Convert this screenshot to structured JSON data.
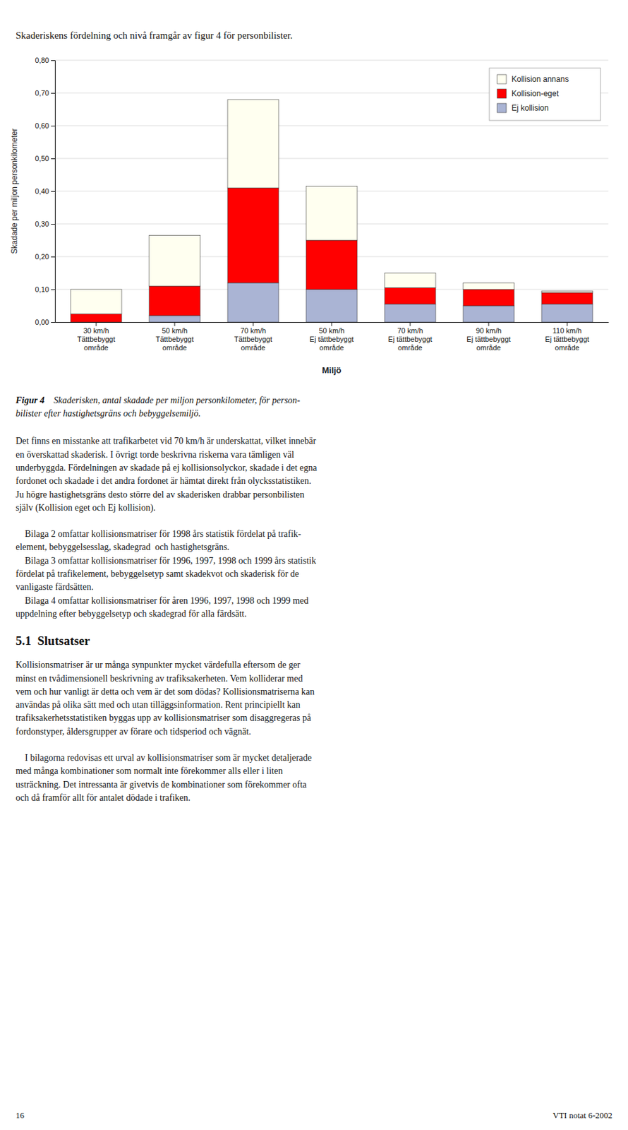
{
  "chart_data": {
    "type": "bar",
    "stacked": true,
    "categories": [
      "30 km/h\nTättbebyggt\nområde",
      "50 km/h\nTättbebyggt\nområde",
      "70 km/h\nTättbebyggt\nområde",
      "50 km/h\nEj tättbebyggt\nområde",
      "70 km/h\nEj tättbebyggt\nområde",
      "90 km/h\nEj tättbebyggt\nområde",
      "110 km/h\nEj tättbebyggt\nområde"
    ],
    "series": [
      {
        "name": "Ej kollision",
        "color": "#aab4d4",
        "values": [
          0.0,
          0.02,
          0.12,
          0.1,
          0.055,
          0.05,
          0.055
        ]
      },
      {
        "name": "Kollision-eget",
        "color": "#ff0000",
        "values": [
          0.025,
          0.09,
          0.29,
          0.15,
          0.05,
          0.05,
          0.035
        ]
      },
      {
        "name": "Kollision annans",
        "color": "#fffff0",
        "values": [
          0.075,
          0.155,
          0.27,
          0.165,
          0.045,
          0.02,
          0.005
        ]
      }
    ],
    "ylabel": "Skadade per miljon personkilometer",
    "ylim": [
      0.0,
      0.8
    ],
    "yticks": [
      {
        "value": 0.0,
        "label": "0,00"
      },
      {
        "value": 0.1,
        "label": "0,10"
      },
      {
        "value": 0.2,
        "label": "0,20"
      },
      {
        "value": 0.3,
        "label": "0,30"
      },
      {
        "value": 0.4,
        "label": "0,40"
      },
      {
        "value": 0.5,
        "label": "0,50"
      },
      {
        "value": 0.6,
        "label": "0,60"
      },
      {
        "value": 0.7,
        "label": "0,70"
      },
      {
        "value": 0.8,
        "label": "0,80"
      }
    ],
    "grid": true,
    "legend": "upper right",
    "annotations": [
      {
        "text": "Miljö",
        "category": "50 km/h\nEj tättbebyggt\nområde"
      }
    ]
  },
  "intro": "Skaderiskens fördelning och nivå framgår av figur 4 för personbilister.",
  "caption_label": "Figur 4",
  "caption": "    Skaderisken, antal skadade per miljon personkilometer, för person-\nbilister efter hastighetsgräns och bebyggelsemiljö.",
  "body_1": "Det finns en misstanke att trafikarbetet vid 70 km/h är underskattat, vilket innebär\nen överskattad skaderisk. I övrigt torde beskrivna riskerna vara tämligen väl\nunderbyggda. Fördelningen av skadade på ej kollisionsolyckor, skadade i det egna\nfordonet och skadade i det andra fordonet är hämtat direkt från olycksstatistiken.\nJu högre hastighetsgräns desto större del av skaderisken drabbar personbilisten\nsjälv (Kollision eget och Ej kollision).",
  "body_2": "    Bilaga 2 omfattar kollisionsmatriser för 1998 års statistik fördelat på trafik-\nelement, bebyggelsesslag, skadegrad  och hastighetsgräns.\n    Bilaga 3 omfattar kollisionsmatriser för 1996, 1997, 1998 och 1999 års statistik\nfördelat på trafikelement, bebyggelsetyp samt skadekvot och skaderisk för de\nvanligaste färdsätten.\n    Bilaga 4 omfattar kollisionsmatriser för åren 1996, 1997, 1998 och 1999 med\nuppdelning efter bebyggelsetyp och skadegrad för alla färdsätt.",
  "section_heading": "5.1  Slutsatser",
  "body_3": "Kollisionsmatriser är ur många synpunkter mycket värdefulla eftersom de ger\nminst en tvådimensionell beskrivning av trafiksakerheten. Vem kolliderar med\nvem och hur vanligt är detta och vem är det som dödas? Kollisionsmatriserna kan\nanvändas på olika sätt med och utan tilläggsinformation. Rent principiellt kan\ntrafiksakerhetsstatistiken byggas upp av kollisionsmatriser som disaggregeras på\nfordonstyper, åldersgrupper av förare och tidsperiod och vägnät.",
  "body_4": "    I bilagorna redovisas ett urval av kollisionsmatriser som är mycket detaljerade\nmed många kombinationer som normalt inte förekommer alls eller i liten\nusträckning. Det intressanta är givetvis de kombinationer som förekommer ofta\noch då framför allt för antalet dödade i trafiken.",
  "footer_left": "16",
  "footer_right": "VTI notat 6-2002"
}
